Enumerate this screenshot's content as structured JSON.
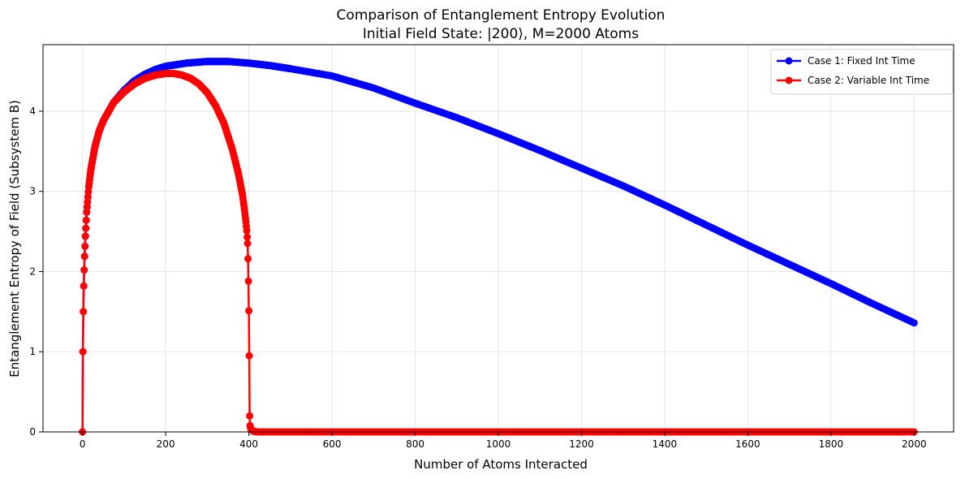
{
  "chart_data": {
    "type": "line",
    "title": "Comparison of Entanglement Entropy Evolution",
    "subtitle": "Initial Field State: |200⟩, M=2000 Atoms",
    "xlabel": "Number of Atoms Interacted",
    "ylabel": "Entanglement Entropy of Field (Subsystem B)",
    "xlim": [
      -95,
      2095
    ],
    "ylim": [
      0,
      4.83
    ],
    "xticks": [
      0,
      200,
      400,
      600,
      800,
      1000,
      1200,
      1400,
      1600,
      1800,
      2000
    ],
    "yticks": [
      0,
      1,
      2,
      3,
      4
    ],
    "grid": true,
    "legend_position": "top-right",
    "series": [
      {
        "name": "Case 1: Fixed Int Time",
        "color": "#0000ff",
        "marker": "circle",
        "x": [
          0,
          1,
          2,
          3,
          4,
          5,
          7,
          10,
          15,
          20,
          30,
          40,
          50,
          75,
          100,
          125,
          150,
          175,
          200,
          250,
          300,
          320,
          350,
          400,
          450,
          500,
          600,
          700,
          800,
          900,
          1000,
          1100,
          1200,
          1300,
          1400,
          1500,
          1600,
          1700,
          1800,
          1900,
          2000
        ],
        "y": [
          0,
          1.0,
          1.5,
          1.82,
          2.02,
          2.19,
          2.44,
          2.74,
          3.06,
          3.27,
          3.56,
          3.75,
          3.88,
          4.11,
          4.26,
          4.38,
          4.46,
          4.52,
          4.56,
          4.6,
          4.62,
          4.62,
          4.62,
          4.6,
          4.57,
          4.53,
          4.44,
          4.29,
          4.1,
          3.92,
          3.72,
          3.51,
          3.29,
          3.07,
          2.83,
          2.58,
          2.33,
          2.09,
          1.85,
          1.6,
          1.36
        ]
      },
      {
        "name": "Case 2: Variable Int Time",
        "color": "#ff0000",
        "marker": "circle",
        "x": [
          0,
          1,
          2,
          3,
          4,
          5,
          7,
          10,
          15,
          20,
          30,
          40,
          50,
          75,
          100,
          125,
          150,
          175,
          200,
          220,
          240,
          260,
          280,
          300,
          320,
          340,
          360,
          375,
          385,
          390,
          393,
          395,
          397,
          398,
          399,
          400,
          401,
          402,
          403,
          405,
          410,
          420,
          500,
          600,
          800,
          1000,
          1200,
          1400,
          1600,
          1800,
          2000
        ],
        "y": [
          0,
          1.0,
          1.5,
          1.82,
          2.02,
          2.19,
          2.44,
          2.74,
          3.06,
          3.27,
          3.56,
          3.75,
          3.88,
          4.11,
          4.24,
          4.34,
          4.41,
          4.45,
          4.47,
          4.47,
          4.45,
          4.41,
          4.34,
          4.23,
          4.07,
          3.85,
          3.53,
          3.22,
          2.95,
          2.75,
          2.62,
          2.51,
          2.35,
          2.16,
          1.88,
          1.51,
          0.95,
          0.2,
          0.08,
          0.03,
          0.01,
          0.0,
          0.0,
          0.0,
          0.0,
          0.0,
          0.0,
          0.0,
          0.0,
          0.0,
          0.0
        ]
      }
    ]
  }
}
